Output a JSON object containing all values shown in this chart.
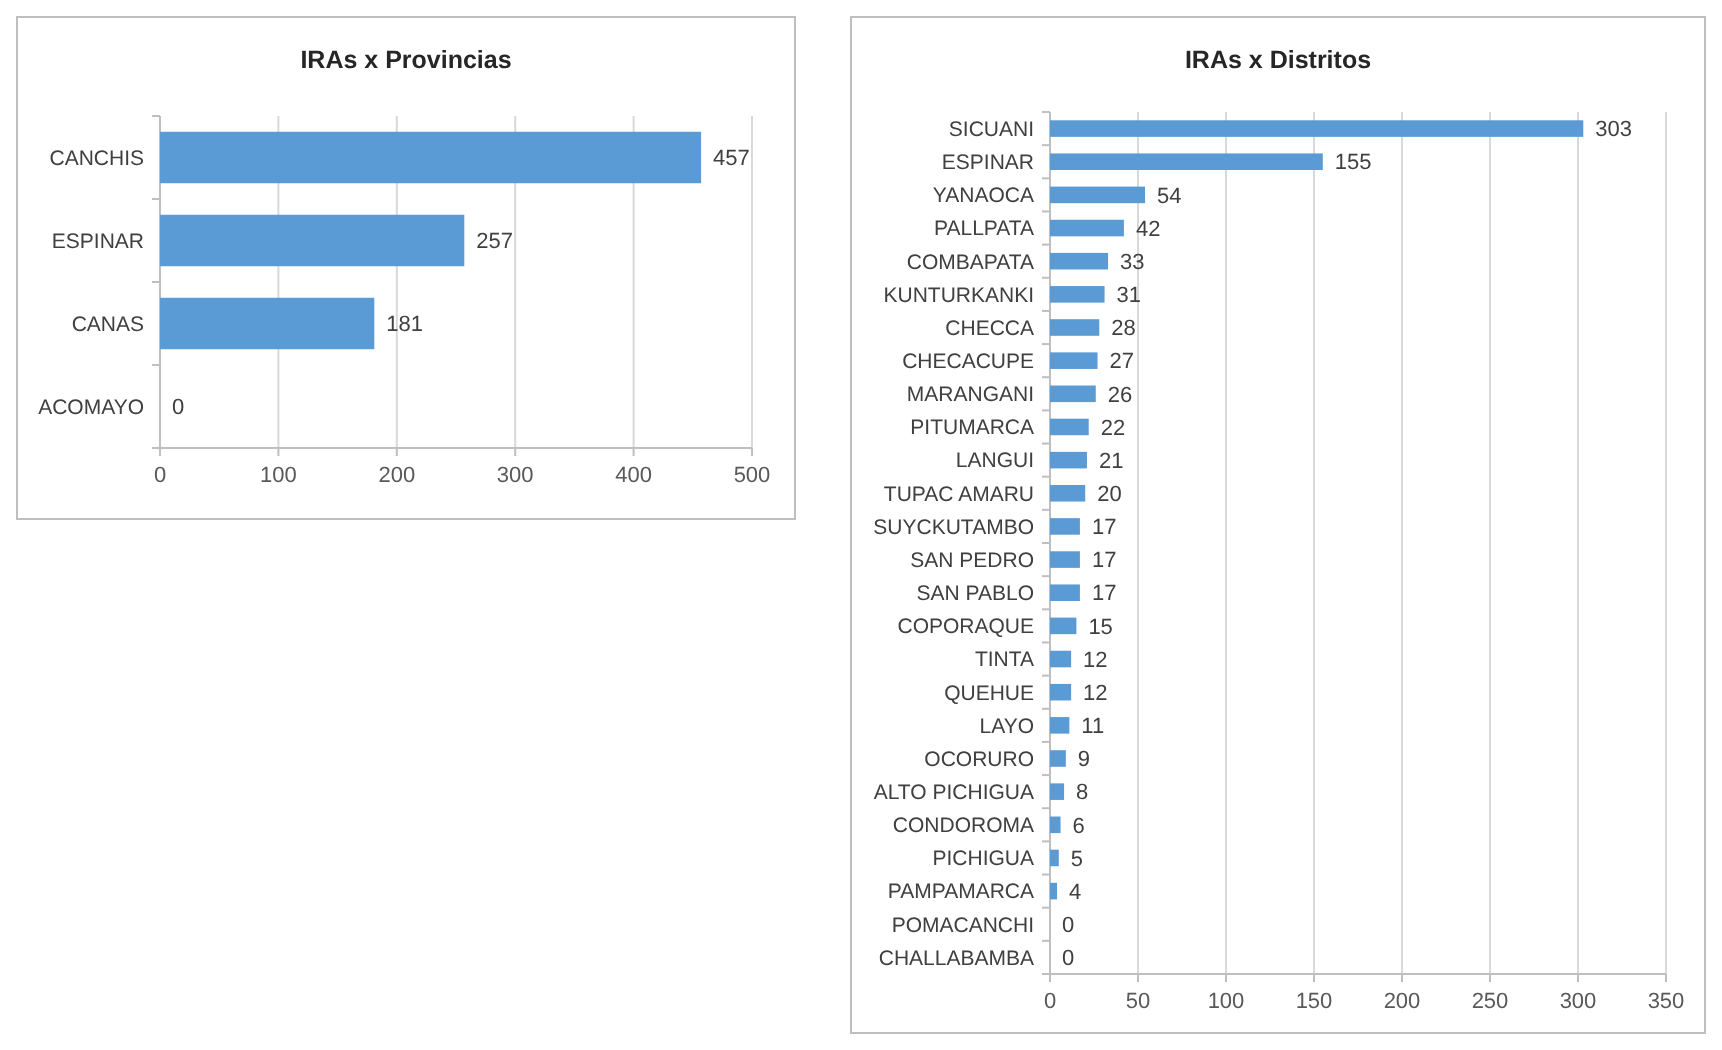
{
  "chart_data": [
    {
      "type": "bar",
      "orientation": "horizontal",
      "title": "IRAs x Provincias",
      "categories": [
        "CANCHIS",
        "ESPINAR",
        "CANAS",
        "ACOMAYO"
      ],
      "values": [
        457,
        257,
        181,
        0
      ],
      "color": "#5b9bd5",
      "xlim": [
        0,
        500
      ],
      "xticks": [
        0,
        100,
        200,
        300,
        400,
        500
      ],
      "grid": "x",
      "data_labels": true
    },
    {
      "type": "bar",
      "orientation": "horizontal",
      "title": "IRAs x Distritos",
      "categories": [
        "SICUANI",
        "ESPINAR",
        "YANAOCA",
        "PALLPATA",
        "COMBAPATA",
        "KUNTURKANKI",
        "CHECCA",
        "CHECACUPE",
        "MARANGANI",
        "PITUMARCA",
        "LANGUI",
        "TUPAC AMARU",
        "SUYCKUTAMBO",
        "SAN PEDRO",
        "SAN PABLO",
        "COPORAQUE",
        "TINTA",
        "QUEHUE",
        "LAYO",
        "OCORURO",
        "ALTO PICHIGUA",
        "CONDOROMA",
        "PICHIGUA",
        "PAMPAMARCA",
        "POMACANCHI",
        "CHALLABAMBA"
      ],
      "values": [
        303,
        155,
        54,
        42,
        33,
        31,
        28,
        27,
        26,
        22,
        21,
        20,
        17,
        17,
        17,
        15,
        12,
        12,
        11,
        9,
        8,
        6,
        5,
        4,
        0,
        0
      ],
      "color": "#5b9bd5",
      "xlim": [
        0,
        350
      ],
      "xticks": [
        0,
        50,
        100,
        150,
        200,
        250,
        300,
        350
      ],
      "grid": "x",
      "data_labels": true
    }
  ]
}
